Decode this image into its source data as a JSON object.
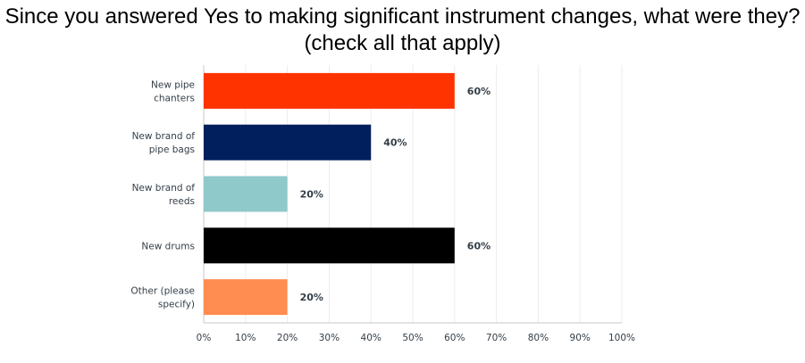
{
  "chart_data": {
    "type": "bar",
    "orientation": "horizontal",
    "title_lines": [
      "Since you answered Yes to making significant instrument changes, what were they?",
      "(check all that apply)"
    ],
    "categories": [
      [
        "New pipe",
        "chanters"
      ],
      [
        "New brand of",
        "pipe bags"
      ],
      [
        "New brand of",
        "reeds"
      ],
      [
        "New drums"
      ],
      [
        "Other (please",
        "specify)"
      ]
    ],
    "values": [
      60,
      40,
      20,
      60,
      20
    ],
    "data_labels": [
      "60%",
      "40%",
      "20%",
      "60%",
      "20%"
    ],
    "colors": [
      "#ff3300",
      "#001f5c",
      "#8fc9c9",
      "#000000",
      "#ff8c50"
    ],
    "xlim": [
      0,
      100
    ],
    "xticks": [
      "0%",
      "10%",
      "20%",
      "30%",
      "40%",
      "50%",
      "60%",
      "70%",
      "80%",
      "90%",
      "100%"
    ],
    "grid": true
  }
}
